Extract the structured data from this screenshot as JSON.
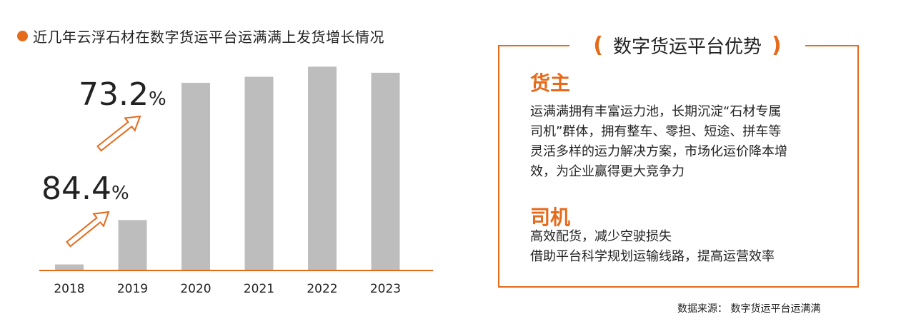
{
  "chart_data": {
    "type": "bar",
    "title": "近几年云浮石材在数字货运平台运满满上发货增长情况",
    "categories": [
      "2018",
      "2019",
      "2020",
      "2021",
      "2022",
      "2023"
    ],
    "values": [
      3,
      25,
      93,
      96,
      101,
      98
    ],
    "ylim": [
      0,
      110
    ],
    "bar_color": "#BDBDBD",
    "axis_color": "#E56A1A",
    "annotations": [
      {
        "value": "84.4",
        "unit": "%",
        "from": "2018",
        "to": "2019"
      },
      {
        "value": "73.2",
        "unit": "%",
        "from": "2019",
        "to": "2020"
      }
    ]
  },
  "accent_color": "#E56A1A",
  "panel": {
    "open_paren": "(",
    "title": "数字货运平台优势",
    "close_paren": ")",
    "sections": [
      {
        "heading": "货主",
        "lines": [
          "运满满拥有丰富运力池，长期沉淀“石材专属",
          "司机”群体，拥有整车、零担、短途、拼车等",
          "灵活多样的运力解决方案，市场化运价降本增",
          "效，为企业赢得更大竞争力"
        ]
      },
      {
        "heading": "司机",
        "lines": [
          "高效配货，减少空驶损失",
          "借助平台科学规划运输线路，提高运营效率"
        ]
      }
    ]
  },
  "source": "数据来源：  数字货运平台运满满"
}
